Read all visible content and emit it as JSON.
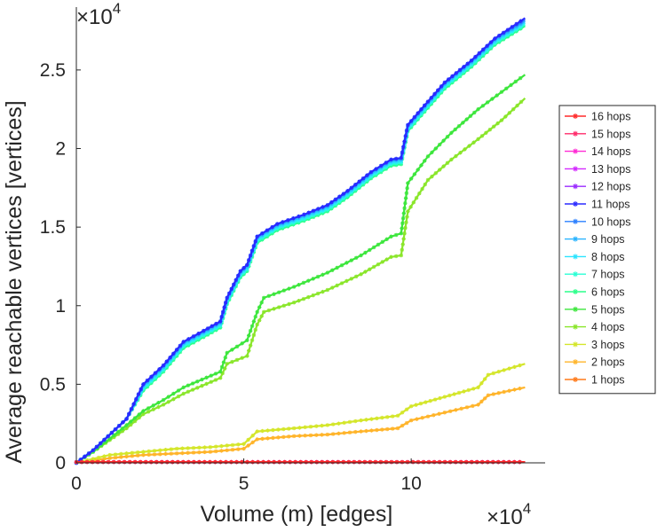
{
  "chart_data": {
    "type": "line",
    "xlabel": "Volume (m) [edges]",
    "ylabel": "Average reachable vertices [vertices]",
    "x_multiplier": "×10",
    "x_exponent": "4",
    "y_multiplier": "×10",
    "y_exponent": "4",
    "xlim": [
      0,
      14
    ],
    "ylim": [
      0,
      2.9
    ],
    "xticks": [
      0,
      5,
      10
    ],
    "xtick_labels": [
      "0",
      "5",
      "10"
    ],
    "yticks": [
      0,
      0.5,
      1,
      1.5,
      2,
      2.5
    ],
    "ytick_labels": [
      "0",
      "0.5",
      "1",
      "1.5",
      "2",
      "2.5"
    ],
    "legend_position": "right",
    "grid": false,
    "series": [
      {
        "name": "16 hops",
        "color": "#ff2a2a",
        "points": [
          [
            0,
            0.005
          ],
          [
            13.4,
            0.005
          ]
        ]
      },
      {
        "name": "15 hops",
        "color": "#ff2a6a",
        "points": [
          [
            0,
            0.005
          ],
          [
            13.4,
            0.005
          ]
        ]
      },
      {
        "name": "14 hops",
        "color": "#ff2ad4",
        "points": [
          [
            0,
            0.005
          ],
          [
            13.4,
            0.005
          ]
        ]
      },
      {
        "name": "13 hops",
        "color": "#d42aff",
        "points": [
          [
            0,
            0.005
          ],
          [
            13.4,
            0.005
          ]
        ]
      },
      {
        "name": "12 hops",
        "color": "#9a2aff",
        "points": [
          [
            0,
            0.005
          ],
          [
            13.4,
            0.005
          ]
        ]
      },
      {
        "name": "11 hops",
        "color": "#2a2aff",
        "points": [
          [
            0,
            0
          ],
          [
            0.5,
            0.08
          ],
          [
            1.5,
            0.28
          ],
          [
            2,
            0.5
          ],
          [
            2.6,
            0.62
          ],
          [
            3.2,
            0.77
          ],
          [
            3.8,
            0.84
          ],
          [
            4.3,
            0.9
          ],
          [
            4.5,
            1.05
          ],
          [
            4.9,
            1.22
          ],
          [
            5.1,
            1.26
          ],
          [
            5.4,
            1.44
          ],
          [
            6,
            1.52
          ],
          [
            6.8,
            1.58
          ],
          [
            7.5,
            1.64
          ],
          [
            8.1,
            1.73
          ],
          [
            8.8,
            1.85
          ],
          [
            9.4,
            1.93
          ],
          [
            9.7,
            1.94
          ],
          [
            9.9,
            2.15
          ],
          [
            10.3,
            2.25
          ],
          [
            11,
            2.42
          ],
          [
            11.8,
            2.56
          ],
          [
            12.5,
            2.7
          ],
          [
            13.4,
            2.83
          ]
        ]
      },
      {
        "name": "10 hops",
        "color": "#2a7fff",
        "points": [
          [
            0,
            0
          ],
          [
            0.5,
            0.08
          ],
          [
            1.5,
            0.28
          ],
          [
            2,
            0.5
          ],
          [
            2.6,
            0.62
          ],
          [
            3.2,
            0.77
          ],
          [
            3.8,
            0.84
          ],
          [
            4.3,
            0.9
          ],
          [
            4.5,
            1.05
          ],
          [
            4.9,
            1.22
          ],
          [
            5.1,
            1.26
          ],
          [
            5.4,
            1.44
          ],
          [
            6,
            1.52
          ],
          [
            6.8,
            1.58
          ],
          [
            7.5,
            1.64
          ],
          [
            8.1,
            1.73
          ],
          [
            8.8,
            1.85
          ],
          [
            9.4,
            1.93
          ],
          [
            9.7,
            1.94
          ],
          [
            9.9,
            2.15
          ],
          [
            10.3,
            2.25
          ],
          [
            11,
            2.42
          ],
          [
            11.8,
            2.56
          ],
          [
            12.5,
            2.7
          ],
          [
            13.4,
            2.82
          ]
        ]
      },
      {
        "name": "9 hops",
        "color": "#2ab4ff",
        "points": [
          [
            0,
            0
          ],
          [
            0.5,
            0.08
          ],
          [
            1.5,
            0.28
          ],
          [
            2,
            0.49
          ],
          [
            2.6,
            0.61
          ],
          [
            3.2,
            0.76
          ],
          [
            3.8,
            0.83
          ],
          [
            4.3,
            0.89
          ],
          [
            4.5,
            1.04
          ],
          [
            4.9,
            1.21
          ],
          [
            5.1,
            1.25
          ],
          [
            5.4,
            1.43
          ],
          [
            6,
            1.51
          ],
          [
            6.8,
            1.57
          ],
          [
            7.5,
            1.63
          ],
          [
            8.1,
            1.72
          ],
          [
            8.8,
            1.84
          ],
          [
            9.4,
            1.92
          ],
          [
            9.7,
            1.93
          ],
          [
            9.9,
            2.14
          ],
          [
            10.3,
            2.24
          ],
          [
            11,
            2.41
          ],
          [
            11.8,
            2.55
          ],
          [
            12.5,
            2.69
          ],
          [
            13.4,
            2.81
          ]
        ]
      },
      {
        "name": "8 hops",
        "color": "#2ae4ff",
        "points": [
          [
            0,
            0
          ],
          [
            0.5,
            0.08
          ],
          [
            1.5,
            0.28
          ],
          [
            2,
            0.48
          ],
          [
            2.6,
            0.6
          ],
          [
            3.2,
            0.75
          ],
          [
            3.8,
            0.82
          ],
          [
            4.3,
            0.88
          ],
          [
            4.5,
            1.03
          ],
          [
            4.9,
            1.2
          ],
          [
            5.1,
            1.24
          ],
          [
            5.4,
            1.42
          ],
          [
            6,
            1.5
          ],
          [
            6.8,
            1.56
          ],
          [
            7.5,
            1.62
          ],
          [
            8.1,
            1.71
          ],
          [
            8.8,
            1.83
          ],
          [
            9.4,
            1.91
          ],
          [
            9.7,
            1.92
          ],
          [
            9.9,
            2.13
          ],
          [
            10.3,
            2.23
          ],
          [
            11,
            2.4
          ],
          [
            11.8,
            2.54
          ],
          [
            12.5,
            2.68
          ],
          [
            13.4,
            2.8
          ]
        ]
      },
      {
        "name": "7 hops",
        "color": "#2affd4",
        "points": [
          [
            0,
            0
          ],
          [
            0.5,
            0.08
          ],
          [
            1.5,
            0.28
          ],
          [
            2,
            0.47
          ],
          [
            2.6,
            0.59
          ],
          [
            3.2,
            0.74
          ],
          [
            3.8,
            0.81
          ],
          [
            4.3,
            0.87
          ],
          [
            4.5,
            1.02
          ],
          [
            4.9,
            1.19
          ],
          [
            5.1,
            1.23
          ],
          [
            5.4,
            1.41
          ],
          [
            6,
            1.49
          ],
          [
            6.8,
            1.55
          ],
          [
            7.5,
            1.61
          ],
          [
            8.1,
            1.7
          ],
          [
            8.8,
            1.82
          ],
          [
            9.4,
            1.9
          ],
          [
            9.7,
            1.91
          ],
          [
            9.9,
            2.12
          ],
          [
            10.3,
            2.22
          ],
          [
            11,
            2.39
          ],
          [
            11.8,
            2.53
          ],
          [
            12.5,
            2.67
          ],
          [
            13.4,
            2.79
          ]
        ]
      },
      {
        "name": "6 hops",
        "color": "#2aff8a",
        "points": [
          [
            0,
            0
          ],
          [
            0.5,
            0.08
          ],
          [
            1.5,
            0.28
          ],
          [
            2,
            0.46
          ],
          [
            2.6,
            0.58
          ],
          [
            3.2,
            0.73
          ],
          [
            3.8,
            0.8
          ],
          [
            4.3,
            0.86
          ],
          [
            4.5,
            1.01
          ],
          [
            4.9,
            1.18
          ],
          [
            5.1,
            1.22
          ],
          [
            5.4,
            1.4
          ],
          [
            6,
            1.48
          ],
          [
            6.8,
            1.54
          ],
          [
            7.5,
            1.6
          ],
          [
            8.1,
            1.69
          ],
          [
            8.8,
            1.81
          ],
          [
            9.4,
            1.89
          ],
          [
            9.7,
            1.9
          ],
          [
            9.9,
            2.11
          ],
          [
            10.3,
            2.21
          ],
          [
            11,
            2.38
          ],
          [
            11.8,
            2.52
          ],
          [
            12.5,
            2.66
          ],
          [
            13.4,
            2.78
          ]
        ]
      },
      {
        "name": "5 hops",
        "color": "#3ce63c",
        "points": [
          [
            0,
            0
          ],
          [
            0.5,
            0.07
          ],
          [
            1.5,
            0.24
          ],
          [
            2,
            0.33
          ],
          [
            2.6,
            0.4
          ],
          [
            3.2,
            0.48
          ],
          [
            4.3,
            0.58
          ],
          [
            4.5,
            0.7
          ],
          [
            5.1,
            0.78
          ],
          [
            5.4,
            0.96
          ],
          [
            5.6,
            1.05
          ],
          [
            6.5,
            1.12
          ],
          [
            7.5,
            1.21
          ],
          [
            8.5,
            1.32
          ],
          [
            9.4,
            1.44
          ],
          [
            9.7,
            1.46
          ],
          [
            9.9,
            1.78
          ],
          [
            10.5,
            1.95
          ],
          [
            11.2,
            2.1
          ],
          [
            12,
            2.25
          ],
          [
            12.7,
            2.36
          ],
          [
            13.4,
            2.47
          ]
        ]
      },
      {
        "name": "4 hops",
        "color": "#8ae62a",
        "points": [
          [
            0,
            0
          ],
          [
            0.5,
            0.07
          ],
          [
            1.5,
            0.22
          ],
          [
            2,
            0.31
          ],
          [
            2.6,
            0.37
          ],
          [
            3.2,
            0.44
          ],
          [
            4.3,
            0.54
          ],
          [
            4.5,
            0.63
          ],
          [
            5.1,
            0.68
          ],
          [
            5.4,
            0.88
          ],
          [
            5.6,
            0.96
          ],
          [
            6.5,
            1.02
          ],
          [
            7.5,
            1.1
          ],
          [
            8.5,
            1.2
          ],
          [
            9.4,
            1.31
          ],
          [
            9.7,
            1.32
          ],
          [
            9.9,
            1.6
          ],
          [
            10.5,
            1.8
          ],
          [
            11.2,
            1.93
          ],
          [
            12,
            2.06
          ],
          [
            12.7,
            2.18
          ],
          [
            13.4,
            2.32
          ]
        ]
      },
      {
        "name": "3 hops",
        "color": "#d4e62a",
        "points": [
          [
            0,
            0
          ],
          [
            1,
            0.05
          ],
          [
            2,
            0.07
          ],
          [
            3,
            0.09
          ],
          [
            4,
            0.1
          ],
          [
            5,
            0.12
          ],
          [
            5.4,
            0.2
          ],
          [
            6.5,
            0.22
          ],
          [
            7.5,
            0.24
          ],
          [
            8.5,
            0.27
          ],
          [
            9.6,
            0.3
          ],
          [
            10,
            0.36
          ],
          [
            11,
            0.42
          ],
          [
            12,
            0.48
          ],
          [
            12.3,
            0.56
          ],
          [
            13.4,
            0.63
          ]
        ]
      },
      {
        "name": "2 hops",
        "color": "#ffb42a",
        "points": [
          [
            0,
            0
          ],
          [
            1,
            0.03
          ],
          [
            2,
            0.05
          ],
          [
            3,
            0.06
          ],
          [
            4,
            0.07
          ],
          [
            5,
            0.09
          ],
          [
            5.4,
            0.15
          ],
          [
            6.5,
            0.17
          ],
          [
            7.5,
            0.18
          ],
          [
            8.5,
            0.2
          ],
          [
            9.6,
            0.22
          ],
          [
            10,
            0.27
          ],
          [
            11,
            0.32
          ],
          [
            12,
            0.37
          ],
          [
            12.3,
            0.43
          ],
          [
            13.4,
            0.48
          ]
        ]
      },
      {
        "name": "1 hops",
        "color": "#ff7a1a",
        "points": [
          [
            0,
            0.005
          ],
          [
            13.4,
            0.005
          ]
        ]
      }
    ]
  }
}
